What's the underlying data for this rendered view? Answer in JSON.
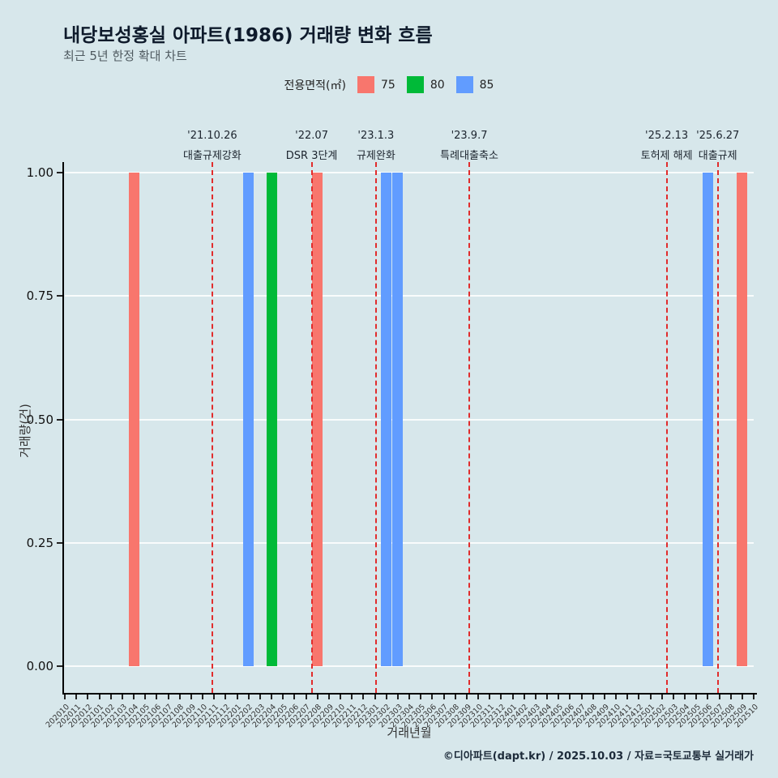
{
  "page": {
    "footer": "©디아파트(dapt.kr) / 2025.10.03 / 자료=국토교통부 실거래가"
  },
  "legend": {
    "label": "전용면적(㎡)",
    "items": [
      {
        "label": "75",
        "color": "#F8766D"
      },
      {
        "label": "80",
        "color": "#00BA38"
      },
      {
        "label": "85",
        "color": "#619CFF"
      }
    ]
  },
  "colors": {
    "background": "#d7e7eb",
    "event_line": "#e12c2c",
    "gridline": "#ffffff"
  },
  "chart_data": {
    "type": "bar",
    "title": "내당보성홍실 아파트(1986) 거래량 변화 흐름",
    "subtitle": "최근 5년 한정 확대 차트",
    "xlabel": "거래년월",
    "ylabel": "거래량(건)",
    "ylim": [
      0,
      1
    ],
    "yticks": [
      "0.00",
      "0.25",
      "0.50",
      "0.75",
      "1.00"
    ],
    "grid": true,
    "legend_position": "top",
    "categories": [
      "202010",
      "202011",
      "202012",
      "202101",
      "202102",
      "202103",
      "202104",
      "202105",
      "202106",
      "202107",
      "202108",
      "202109",
      "202110",
      "202111",
      "202112",
      "202201",
      "202202",
      "202203",
      "202204",
      "202205",
      "202206",
      "202207",
      "202208",
      "202209",
      "202210",
      "202211",
      "202212",
      "202301",
      "202302",
      "202303",
      "202304",
      "202305",
      "202306",
      "202307",
      "202308",
      "202309",
      "202310",
      "202311",
      "202312",
      "202401",
      "202402",
      "202403",
      "202404",
      "202405",
      "202406",
      "202407",
      "202408",
      "202409",
      "202410",
      "202411",
      "202412",
      "202501",
      "202502",
      "202503",
      "202504",
      "202505",
      "202506",
      "202507",
      "202508",
      "202509",
      "202510"
    ],
    "bars": [
      {
        "month": "202104",
        "series": "75",
        "value": 1
      },
      {
        "month": "202202",
        "series": "85",
        "value": 1
      },
      {
        "month": "202204",
        "series": "80",
        "value": 1
      },
      {
        "month": "202208",
        "series": "75",
        "value": 1
      },
      {
        "month": "202302",
        "series": "85",
        "value": 1
      },
      {
        "month": "202303",
        "series": "85",
        "value": 1
      },
      {
        "month": "202506",
        "series": "85",
        "value": 1
      },
      {
        "month": "202509",
        "series": "75",
        "value": 1
      }
    ],
    "events": [
      {
        "date": "'21.10.26",
        "desc": "대출규제강화",
        "month": "202110",
        "day": 26
      },
      {
        "date": "'22.07",
        "desc": "DSR 3단계",
        "month": "202207",
        "day": null
      },
      {
        "date": "'23.1.3",
        "desc": "규제완화",
        "month": "202301",
        "day": 3
      },
      {
        "date": "'23.9.7",
        "desc": "특례대출축소",
        "month": "202309",
        "day": 7
      },
      {
        "date": "'25.2.13",
        "desc": "토허제 해제",
        "month": "202502",
        "day": 13
      },
      {
        "date": "'25.6.27",
        "desc": "대출규제",
        "month": "202506",
        "day": 27
      }
    ]
  }
}
